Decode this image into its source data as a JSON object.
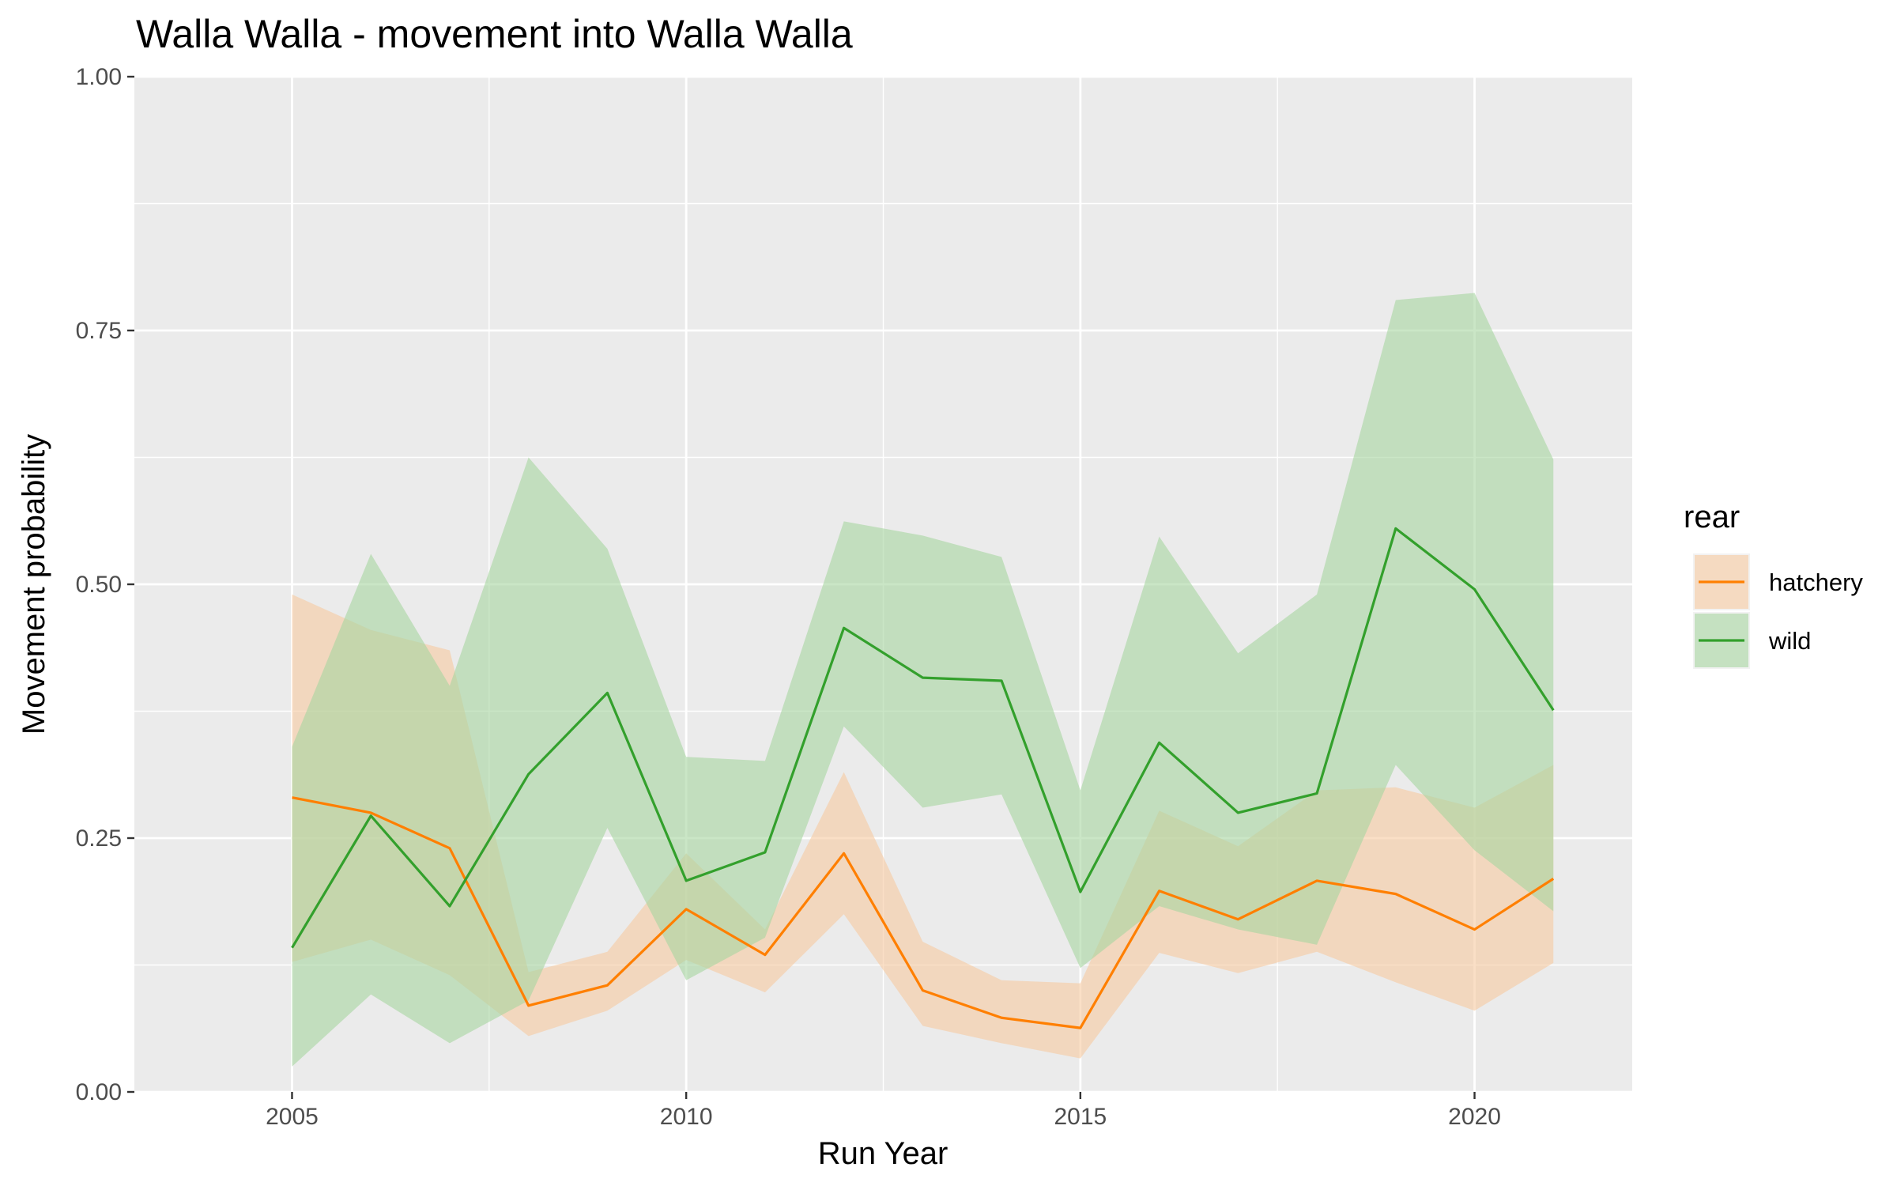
{
  "chart_data": {
    "type": "line",
    "title": "Walla Walla - movement into Walla Walla",
    "xlabel": "Run Year",
    "ylabel": "Movement probability",
    "xlim": [
      2003,
      2022
    ],
    "ylim": [
      0,
      1
    ],
    "x_ticks": [
      2005,
      2010,
      2015,
      2020
    ],
    "x_tick_labels": [
      "2005",
      "2010",
      "2015",
      "2020"
    ],
    "y_ticks": [
      0,
      0.25,
      0.5,
      0.75,
      1.0
    ],
    "y_tick_labels": [
      "0.00",
      "0.25",
      "0.50",
      "0.75",
      "1.00"
    ],
    "grid": true,
    "legend": {
      "title": "rear",
      "position": "right"
    },
    "x": [
      2005,
      2006,
      2007,
      2008,
      2009,
      2010,
      2011,
      2012,
      2013,
      2014,
      2015,
      2016,
      2017,
      2018,
      2019,
      2020,
      2021
    ],
    "series": [
      {
        "name": "hatchery",
        "color": "#ff7f00",
        "ribbon_color": "#f7c9a0",
        "values": [
          0.29,
          0.275,
          0.24,
          0.085,
          0.105,
          0.18,
          0.135,
          0.235,
          0.1,
          0.073,
          0.063,
          0.198,
          0.17,
          0.208,
          0.195,
          0.16,
          0.21
        ],
        "lower": [
          0.128,
          0.15,
          0.115,
          0.055,
          0.08,
          0.13,
          0.098,
          0.175,
          0.065,
          0.048,
          0.033,
          0.137,
          0.117,
          0.138,
          0.108,
          0.08,
          0.127
        ],
        "upper": [
          0.49,
          0.455,
          0.435,
          0.118,
          0.138,
          0.235,
          0.16,
          0.315,
          0.148,
          0.11,
          0.107,
          0.277,
          0.242,
          0.297,
          0.3,
          0.28,
          0.322
        ]
      },
      {
        "name": "wild",
        "color": "#33a02c",
        "ribbon_color": "#a6d6a0",
        "values": [
          0.142,
          0.272,
          0.183,
          0.313,
          0.393,
          0.208,
          0.236,
          0.457,
          0.408,
          0.405,
          0.197,
          0.344,
          0.275,
          0.294,
          0.555,
          0.495,
          0.376
        ],
        "lower": [
          0.025,
          0.096,
          0.048,
          0.09,
          0.26,
          0.11,
          0.152,
          0.36,
          0.28,
          0.293,
          0.122,
          0.183,
          0.16,
          0.145,
          0.322,
          0.238,
          0.178
        ],
        "upper": [
          0.34,
          0.53,
          0.4,
          0.625,
          0.535,
          0.33,
          0.326,
          0.562,
          0.548,
          0.527,
          0.297,
          0.547,
          0.432,
          0.49,
          0.78,
          0.787,
          0.623
        ]
      }
    ]
  }
}
